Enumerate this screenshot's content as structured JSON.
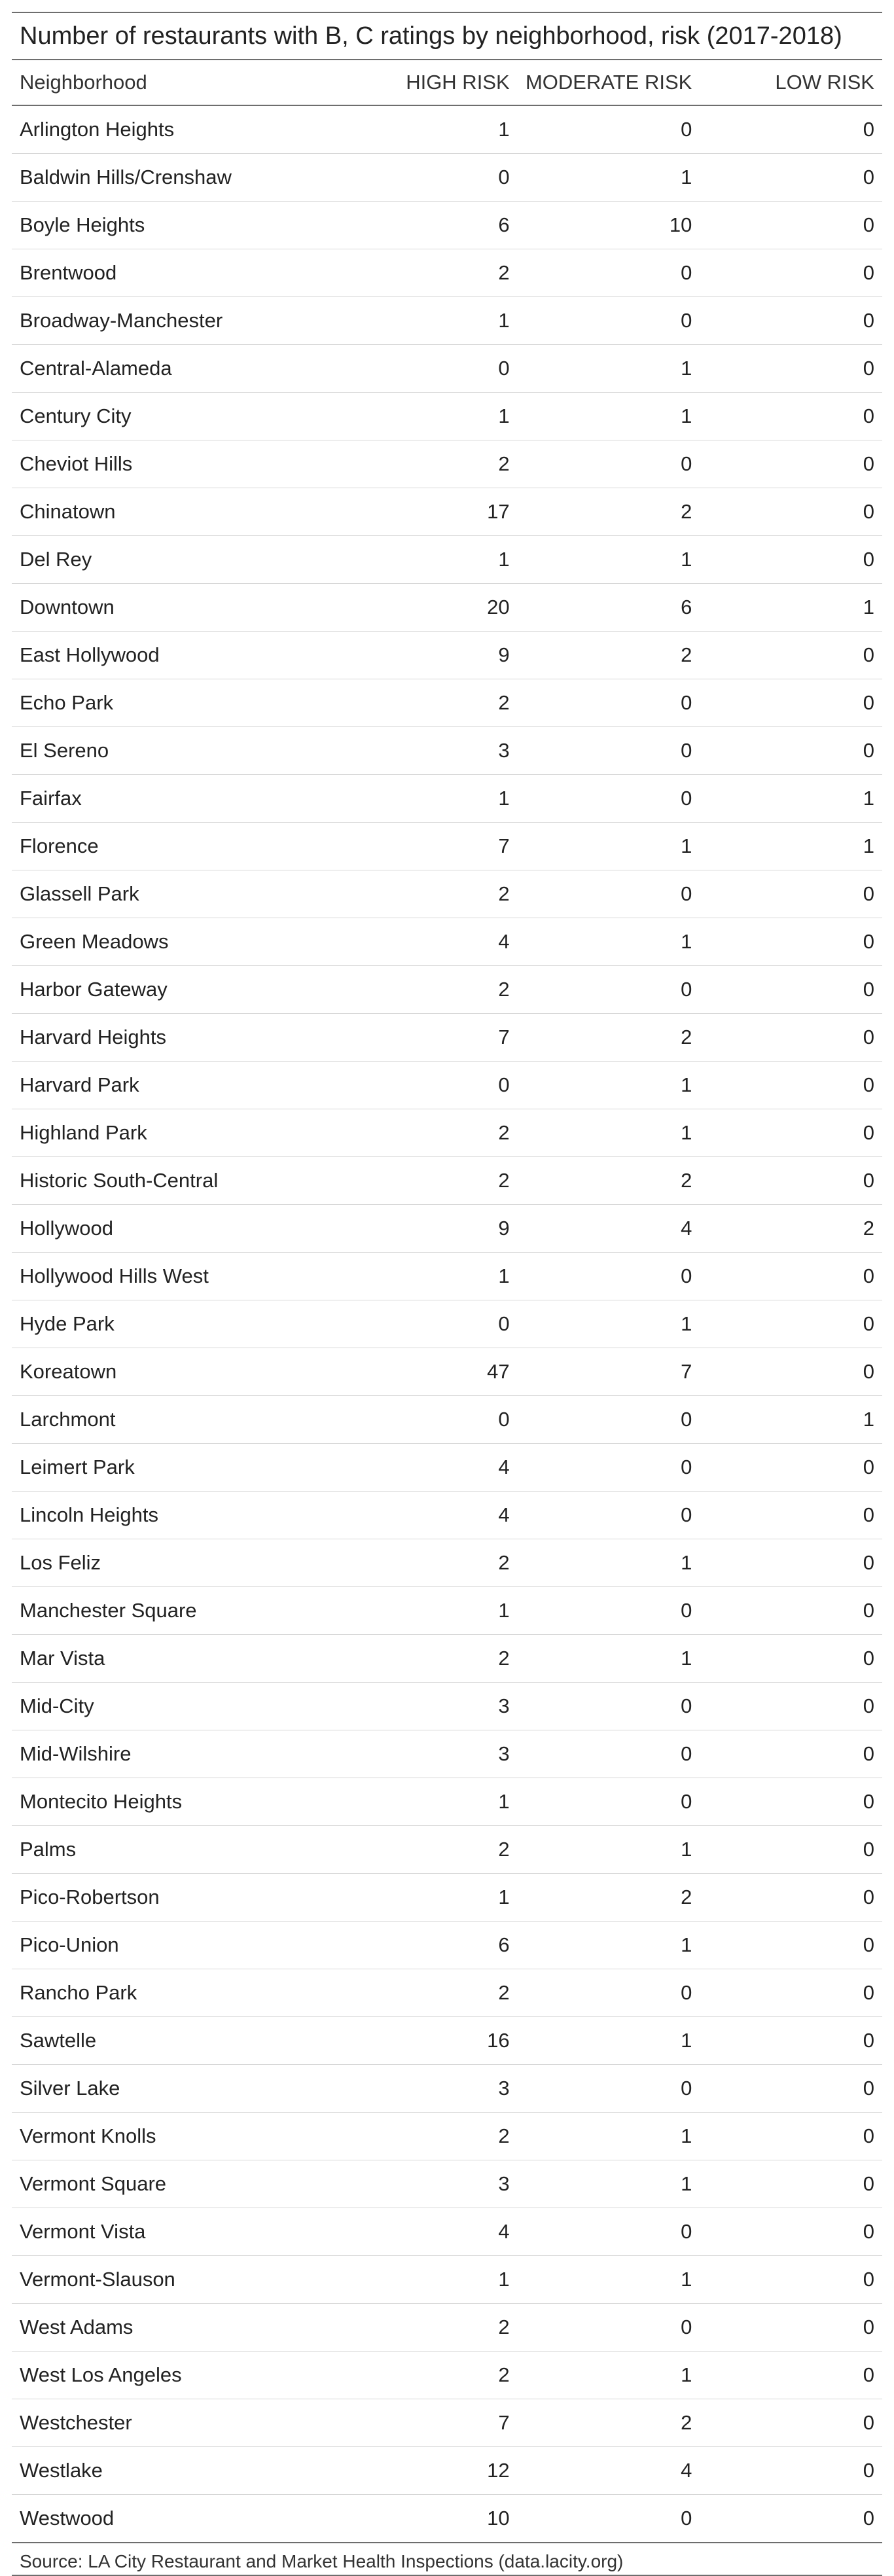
{
  "chart_data": {
    "type": "table",
    "title": "Number of restaurants with B, C ratings by neighborhood, risk (2017-2018)",
    "columns": [
      "Neighborhood",
      "HIGH RISK",
      "MODERATE RISK",
      "LOW RISK"
    ],
    "rows": [
      [
        "Arlington Heights",
        1,
        0,
        0
      ],
      [
        "Baldwin Hills/Crenshaw",
        0,
        1,
        0
      ],
      [
        "Boyle Heights",
        6,
        10,
        0
      ],
      [
        "Brentwood",
        2,
        0,
        0
      ],
      [
        "Broadway-Manchester",
        1,
        0,
        0
      ],
      [
        "Central-Alameda",
        0,
        1,
        0
      ],
      [
        "Century City",
        1,
        1,
        0
      ],
      [
        "Cheviot Hills",
        2,
        0,
        0
      ],
      [
        "Chinatown",
        17,
        2,
        0
      ],
      [
        "Del Rey",
        1,
        1,
        0
      ],
      [
        "Downtown",
        20,
        6,
        1
      ],
      [
        "East Hollywood",
        9,
        2,
        0
      ],
      [
        "Echo Park",
        2,
        0,
        0
      ],
      [
        "El Sereno",
        3,
        0,
        0
      ],
      [
        "Fairfax",
        1,
        0,
        1
      ],
      [
        "Florence",
        7,
        1,
        1
      ],
      [
        "Glassell Park",
        2,
        0,
        0
      ],
      [
        "Green Meadows",
        4,
        1,
        0
      ],
      [
        "Harbor Gateway",
        2,
        0,
        0
      ],
      [
        "Harvard Heights",
        7,
        2,
        0
      ],
      [
        "Harvard Park",
        0,
        1,
        0
      ],
      [
        "Highland Park",
        2,
        1,
        0
      ],
      [
        "Historic South-Central",
        2,
        2,
        0
      ],
      [
        "Hollywood",
        9,
        4,
        2
      ],
      [
        "Hollywood Hills West",
        1,
        0,
        0
      ],
      [
        "Hyde Park",
        0,
        1,
        0
      ],
      [
        "Koreatown",
        47,
        7,
        0
      ],
      [
        "Larchmont",
        0,
        0,
        1
      ],
      [
        "Leimert Park",
        4,
        0,
        0
      ],
      [
        "Lincoln Heights",
        4,
        0,
        0
      ],
      [
        "Los Feliz",
        2,
        1,
        0
      ],
      [
        "Manchester Square",
        1,
        0,
        0
      ],
      [
        "Mar Vista",
        2,
        1,
        0
      ],
      [
        "Mid-City",
        3,
        0,
        0
      ],
      [
        "Mid-Wilshire",
        3,
        0,
        0
      ],
      [
        "Montecito Heights",
        1,
        0,
        0
      ],
      [
        "Palms",
        2,
        1,
        0
      ],
      [
        "Pico-Robertson",
        1,
        2,
        0
      ],
      [
        "Pico-Union",
        6,
        1,
        0
      ],
      [
        "Rancho Park",
        2,
        0,
        0
      ],
      [
        "Sawtelle",
        16,
        1,
        0
      ],
      [
        "Silver Lake",
        3,
        0,
        0
      ],
      [
        "Vermont Knolls",
        2,
        1,
        0
      ],
      [
        "Vermont Square",
        3,
        1,
        0
      ],
      [
        "Vermont Vista",
        4,
        0,
        0
      ],
      [
        "Vermont-Slauson",
        1,
        1,
        0
      ],
      [
        "West Adams",
        2,
        0,
        0
      ],
      [
        "West Los Angeles",
        2,
        1,
        0
      ],
      [
        "Westchester",
        7,
        2,
        0
      ],
      [
        "Westlake",
        12,
        4,
        0
      ],
      [
        "Westwood",
        10,
        0,
        0
      ]
    ],
    "source": "Source: LA City Restaurant and Market Health Inspections (data.lacity.org)"
  }
}
